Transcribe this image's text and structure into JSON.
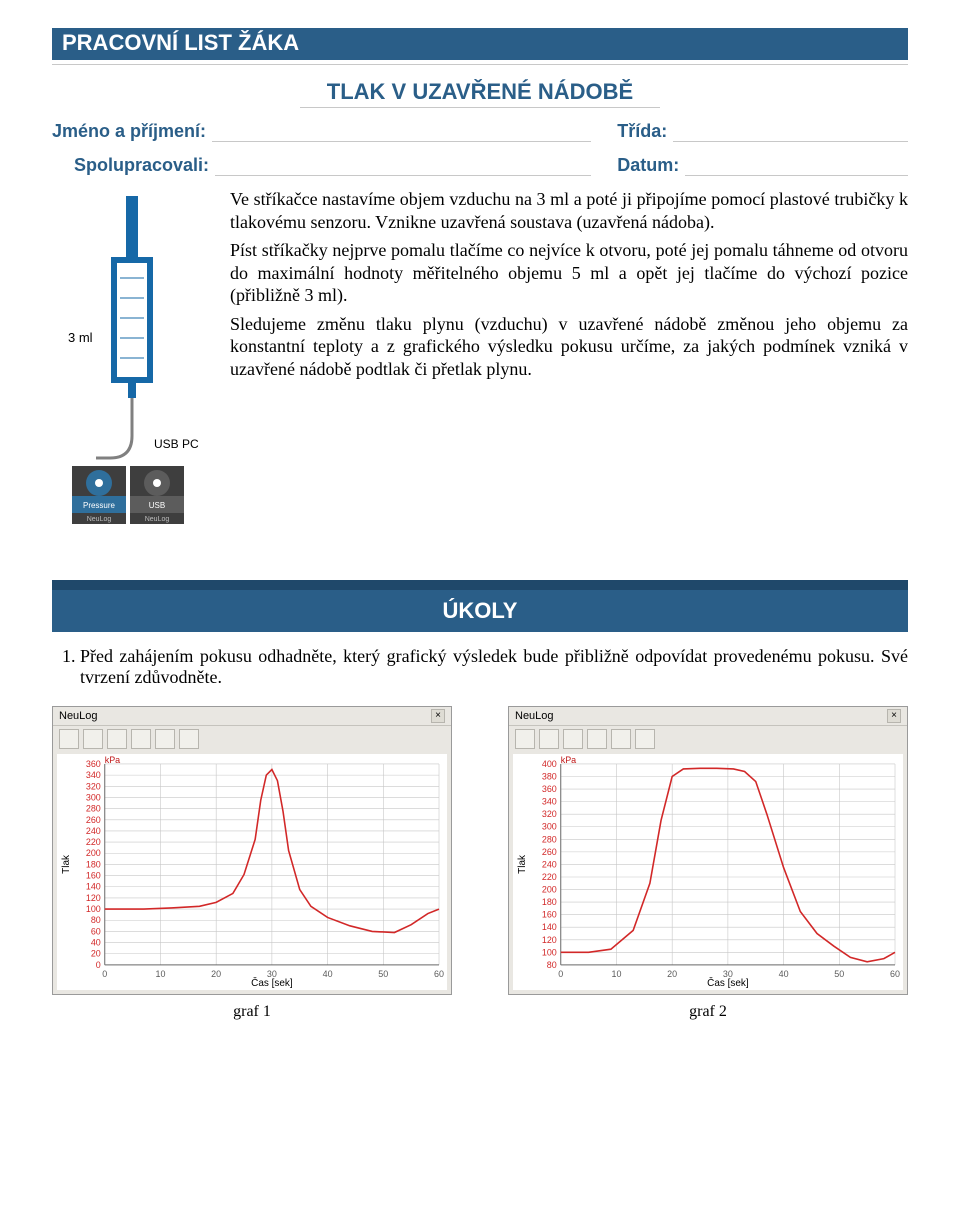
{
  "header": {
    "page_title": "PRACOVNÍ LIST ŽÁKA",
    "sub_title": "TLAK V UZAVŘENÉ NÁDOBĚ"
  },
  "meta": {
    "name_label": "Jméno a příjmení:",
    "class_label": "Třída:",
    "colab_label": "Spolupracovali:",
    "date_label": "Datum:"
  },
  "apparatus": {
    "syringe_label": "3 ml",
    "usb_label": "USB PC",
    "sensors": [
      {
        "name": "Pressure",
        "brand": "NeuLog",
        "color": "#2f6f9c"
      },
      {
        "name": "USB",
        "brand": "NeuLog",
        "color": "#5c5c5c"
      }
    ]
  },
  "body_text": {
    "p1": "Ve stříkačce nastavíme objem vzduchu na 3 ml a poté ji připojíme pomocí plastové trubičky k tlakovému senzoru. Vznikne uzavřená soustava (uzavřená nádoba).",
    "p2": "Píst stříkačky nejprve pomalu tlačíme co nejvíce k otvoru, poté jej pomalu táhneme od otvoru do maximální hodnoty měřitelného objemu 5 ml a opět jej tlačíme do výchozí pozice (přibližně 3 ml).",
    "p3": "Sledujeme změnu tlaku plynu (vzduchu) v uzavřené nádobě změnou jeho objemu za konstantní teploty a z grafického výsledku pokusu určíme, za jakých podmínek vzniká v uzavřené nádobě podtlak či přetlak plynu."
  },
  "tasks": {
    "heading": "ÚKOLY",
    "item1": "Před zahájením pokusu odhadněte, který grafický výsledek bude přibližně odpovídat provedenému pokusu. Své tvrzení zdůvodněte."
  },
  "charts": {
    "window_title": "NeuLog",
    "yaxis_title": "Tlak",
    "xaxis_title": "Čas [sek]",
    "yunit": "kPa",
    "x_ticks": [
      0,
      10,
      20,
      30,
      40,
      50,
      60
    ],
    "colors": {
      "axis": "#6a6a6a",
      "grid": "#c7c7c7",
      "series": "#d22828",
      "plot_bg": "#ffffff",
      "label": "#d22828",
      "tick_text": "#5a5a5a",
      "unit_text": "#c01818"
    },
    "chart1": {
      "caption": "graf 1",
      "y_ticks": [
        0,
        20,
        40,
        60,
        80,
        100,
        120,
        140,
        160,
        180,
        200,
        220,
        240,
        260,
        280,
        300,
        320,
        340,
        360
      ],
      "ylim": [
        0,
        360
      ],
      "series": [
        [
          0,
          100
        ],
        [
          7,
          100
        ],
        [
          12,
          102
        ],
        [
          17,
          105
        ],
        [
          20,
          112
        ],
        [
          23,
          128
        ],
        [
          25,
          162
        ],
        [
          27,
          225
        ],
        [
          28,
          295
        ],
        [
          29,
          340
        ],
        [
          30,
          350
        ],
        [
          31,
          330
        ],
        [
          32,
          275
        ],
        [
          33,
          205
        ],
        [
          35,
          135
        ],
        [
          37,
          105
        ],
        [
          40,
          85
        ],
        [
          44,
          70
        ],
        [
          48,
          60
        ],
        [
          52,
          58
        ],
        [
          55,
          72
        ],
        [
          58,
          92
        ],
        [
          60,
          100
        ]
      ]
    },
    "chart2": {
      "caption": "graf 2",
      "y_ticks": [
        80,
        100,
        120,
        140,
        160,
        180,
        200,
        220,
        240,
        260,
        280,
        300,
        320,
        340,
        360,
        380,
        400
      ],
      "ylim": [
        80,
        400
      ],
      "series": [
        [
          0,
          100
        ],
        [
          5,
          100
        ],
        [
          9,
          105
        ],
        [
          13,
          135
        ],
        [
          16,
          210
        ],
        [
          18,
          310
        ],
        [
          20,
          380
        ],
        [
          22,
          392
        ],
        [
          25,
          393
        ],
        [
          28,
          393
        ],
        [
          31,
          392
        ],
        [
          33,
          388
        ],
        [
          35,
          372
        ],
        [
          37,
          320
        ],
        [
          40,
          235
        ],
        [
          43,
          165
        ],
        [
          46,
          130
        ],
        [
          49,
          110
        ],
        [
          52,
          92
        ],
        [
          55,
          85
        ],
        [
          58,
          90
        ],
        [
          60,
          100
        ]
      ]
    }
  }
}
